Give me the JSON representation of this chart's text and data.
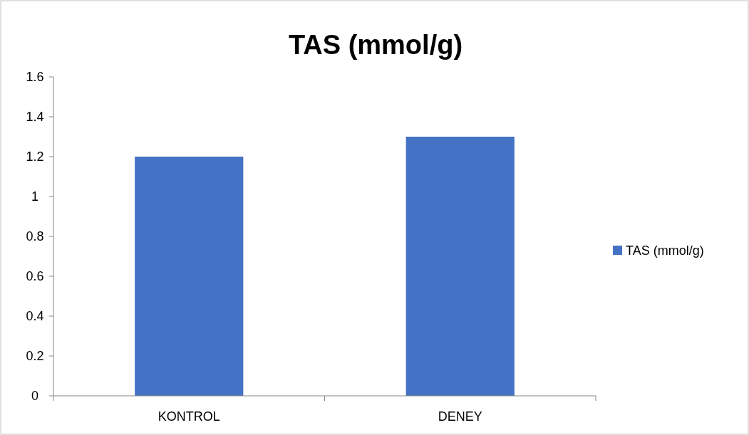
{
  "chart_data": {
    "type": "bar",
    "title": "TAS (mmol/g)",
    "categories": [
      "KONTROL",
      "DENEY"
    ],
    "series": [
      {
        "name": "TAS (mmol/g)",
        "color": "#4472c4",
        "values": [
          1.2,
          1.3
        ]
      }
    ],
    "ylim": [
      0,
      1.6
    ],
    "yticks": [
      0,
      {
        "value": 0.2,
        "label": "0.2"
      },
      {
        "value": 0.4,
        "label": "0.4"
      },
      {
        "value": 0.6,
        "label": "0.6"
      },
      {
        "value": 0.8,
        "label": "0.8"
      },
      1,
      {
        "value": 1.2,
        "label": "1.2"
      },
      {
        "value": 1.4,
        "label": "1.4"
      },
      {
        "value": 1.6,
        "label": "1.6"
      }
    ],
    "grid": false,
    "legend": "right"
  }
}
